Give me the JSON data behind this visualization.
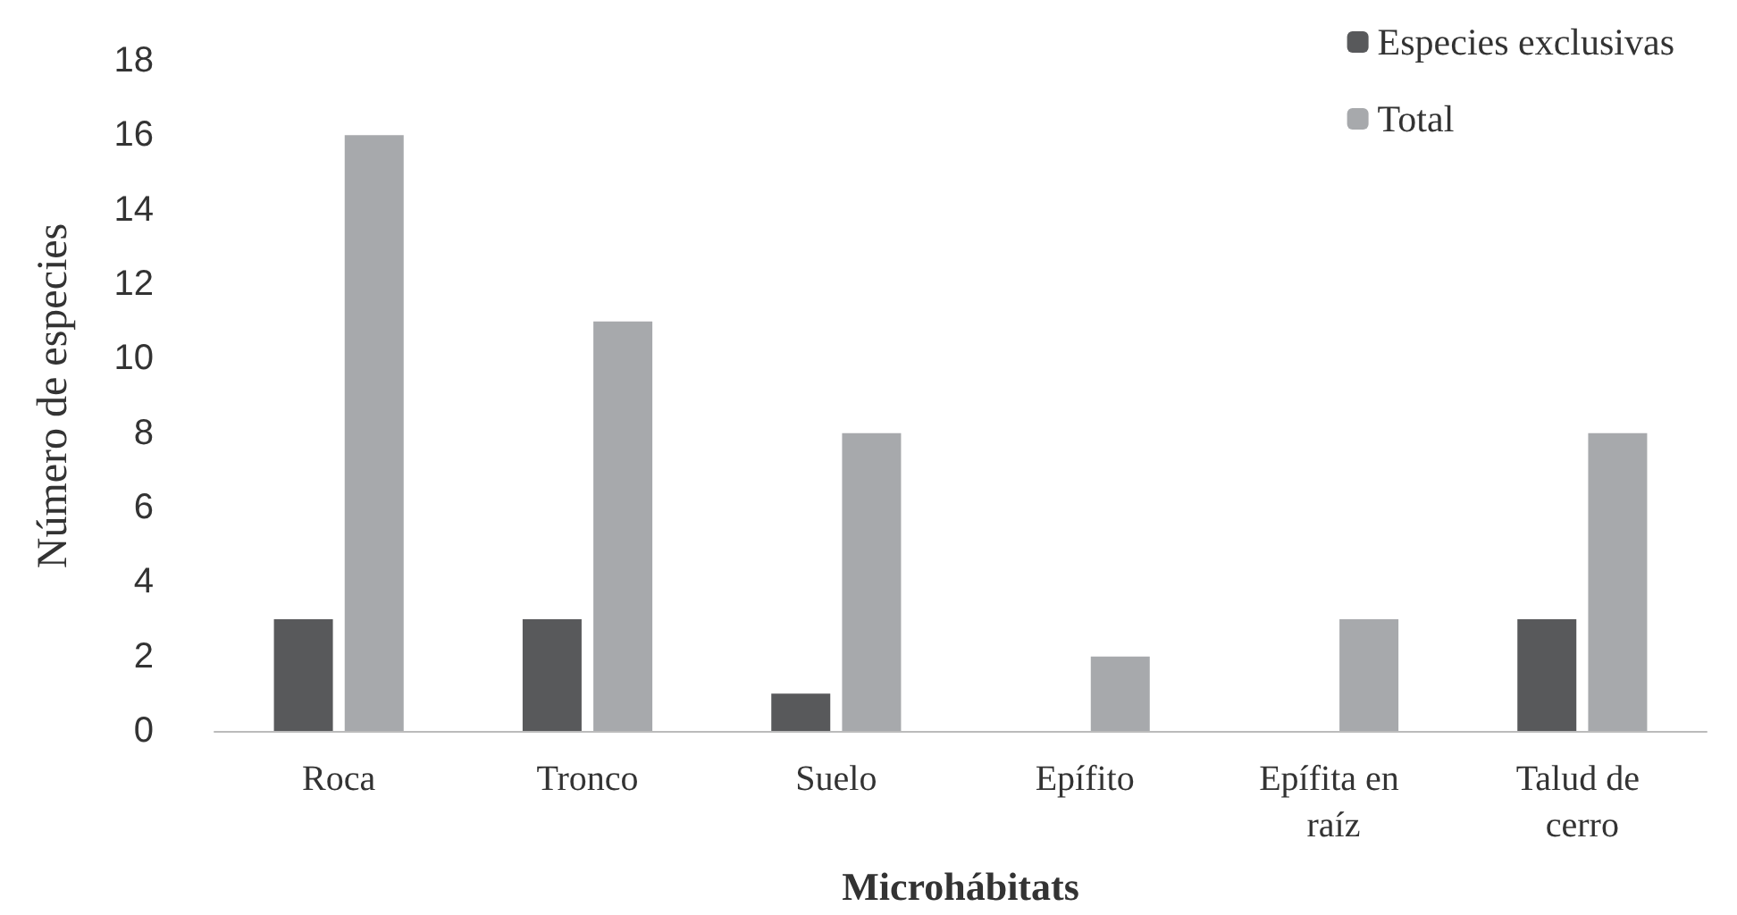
{
  "chart_data": {
    "type": "bar",
    "xlabel": "Microhábitats",
    "ylabel": "Número de especies",
    "categories": [
      "Roca",
      "Tronco",
      "Suelo",
      "Epífito",
      "Epífita en raíz",
      "Talud de cerro"
    ],
    "series": [
      {
        "name": "Especies exclusivas",
        "color": "#58595b",
        "values": [
          3,
          3,
          1,
          0,
          0,
          3
        ]
      },
      {
        "name": "Total",
        "color": "#a7a9ac",
        "values": [
          16,
          11,
          8,
          2,
          3,
          8
        ]
      }
    ],
    "ylim": [
      0,
      18
    ],
    "yticks": [
      0,
      2,
      4,
      6,
      8,
      10,
      12,
      14,
      16,
      18
    ],
    "grid": false,
    "legend": "top right"
  }
}
